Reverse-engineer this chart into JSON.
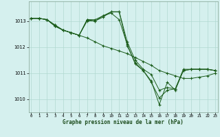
{
  "xlabel": "Graphe pression niveau de la mer (hPa)",
  "background_color": "#d5f0ee",
  "grid_color": "#b0d8d0",
  "line_color": "#1a5c1a",
  "ylim": [
    1009.5,
    1013.75
  ],
  "xlim": [
    -0.3,
    23.3
  ],
  "yticks": [
    1010,
    1011,
    1012,
    1013
  ],
  "xticks": [
    0,
    1,
    2,
    3,
    4,
    5,
    6,
    7,
    8,
    9,
    10,
    11,
    12,
    13,
    14,
    15,
    16,
    17,
    18,
    19,
    20,
    21,
    22,
    23
  ],
  "series": [
    [
      1013.1,
      1013.1,
      1013.05,
      1012.8,
      1012.65,
      1012.55,
      1012.45,
      1013.05,
      1013.05,
      1013.2,
      1013.3,
      1013.05,
      1012.1,
      1011.35,
      1011.1,
      1010.65,
      1010.05,
      1010.35,
      1010.4,
      1011.1,
      1011.15,
      1011.15,
      1011.15,
      1011.1
    ],
    [
      1013.1,
      1013.1,
      1013.05,
      1012.8,
      1012.65,
      1012.55,
      1012.45,
      1013.05,
      1013.0,
      1013.15,
      1013.35,
      1013.35,
      1012.2,
      1011.5,
      1011.15,
      1010.95,
      1010.35,
      1010.45,
      1010.4,
      1011.15,
      1011.15,
      1011.15,
      1011.15,
      1011.1
    ],
    [
      1013.1,
      1013.1,
      1013.05,
      1012.8,
      1012.65,
      1012.55,
      1012.45,
      1013.0,
      1013.0,
      1013.2,
      1013.35,
      1013.35,
      1012.05,
      1011.4,
      1011.1,
      1010.7,
      1009.8,
      1010.65,
      1010.35,
      1011.1,
      1011.15,
      1011.15,
      1011.15,
      1011.1
    ],
    [
      1013.1,
      1013.1,
      1013.05,
      1012.85,
      1012.65,
      1012.55,
      1012.45,
      1012.35,
      1012.2,
      1012.05,
      1011.95,
      1011.85,
      1011.75,
      1011.6,
      1011.45,
      1011.3,
      1011.1,
      1011.0,
      1010.9,
      1010.8,
      1010.8,
      1010.85,
      1010.9,
      1011.0
    ]
  ]
}
